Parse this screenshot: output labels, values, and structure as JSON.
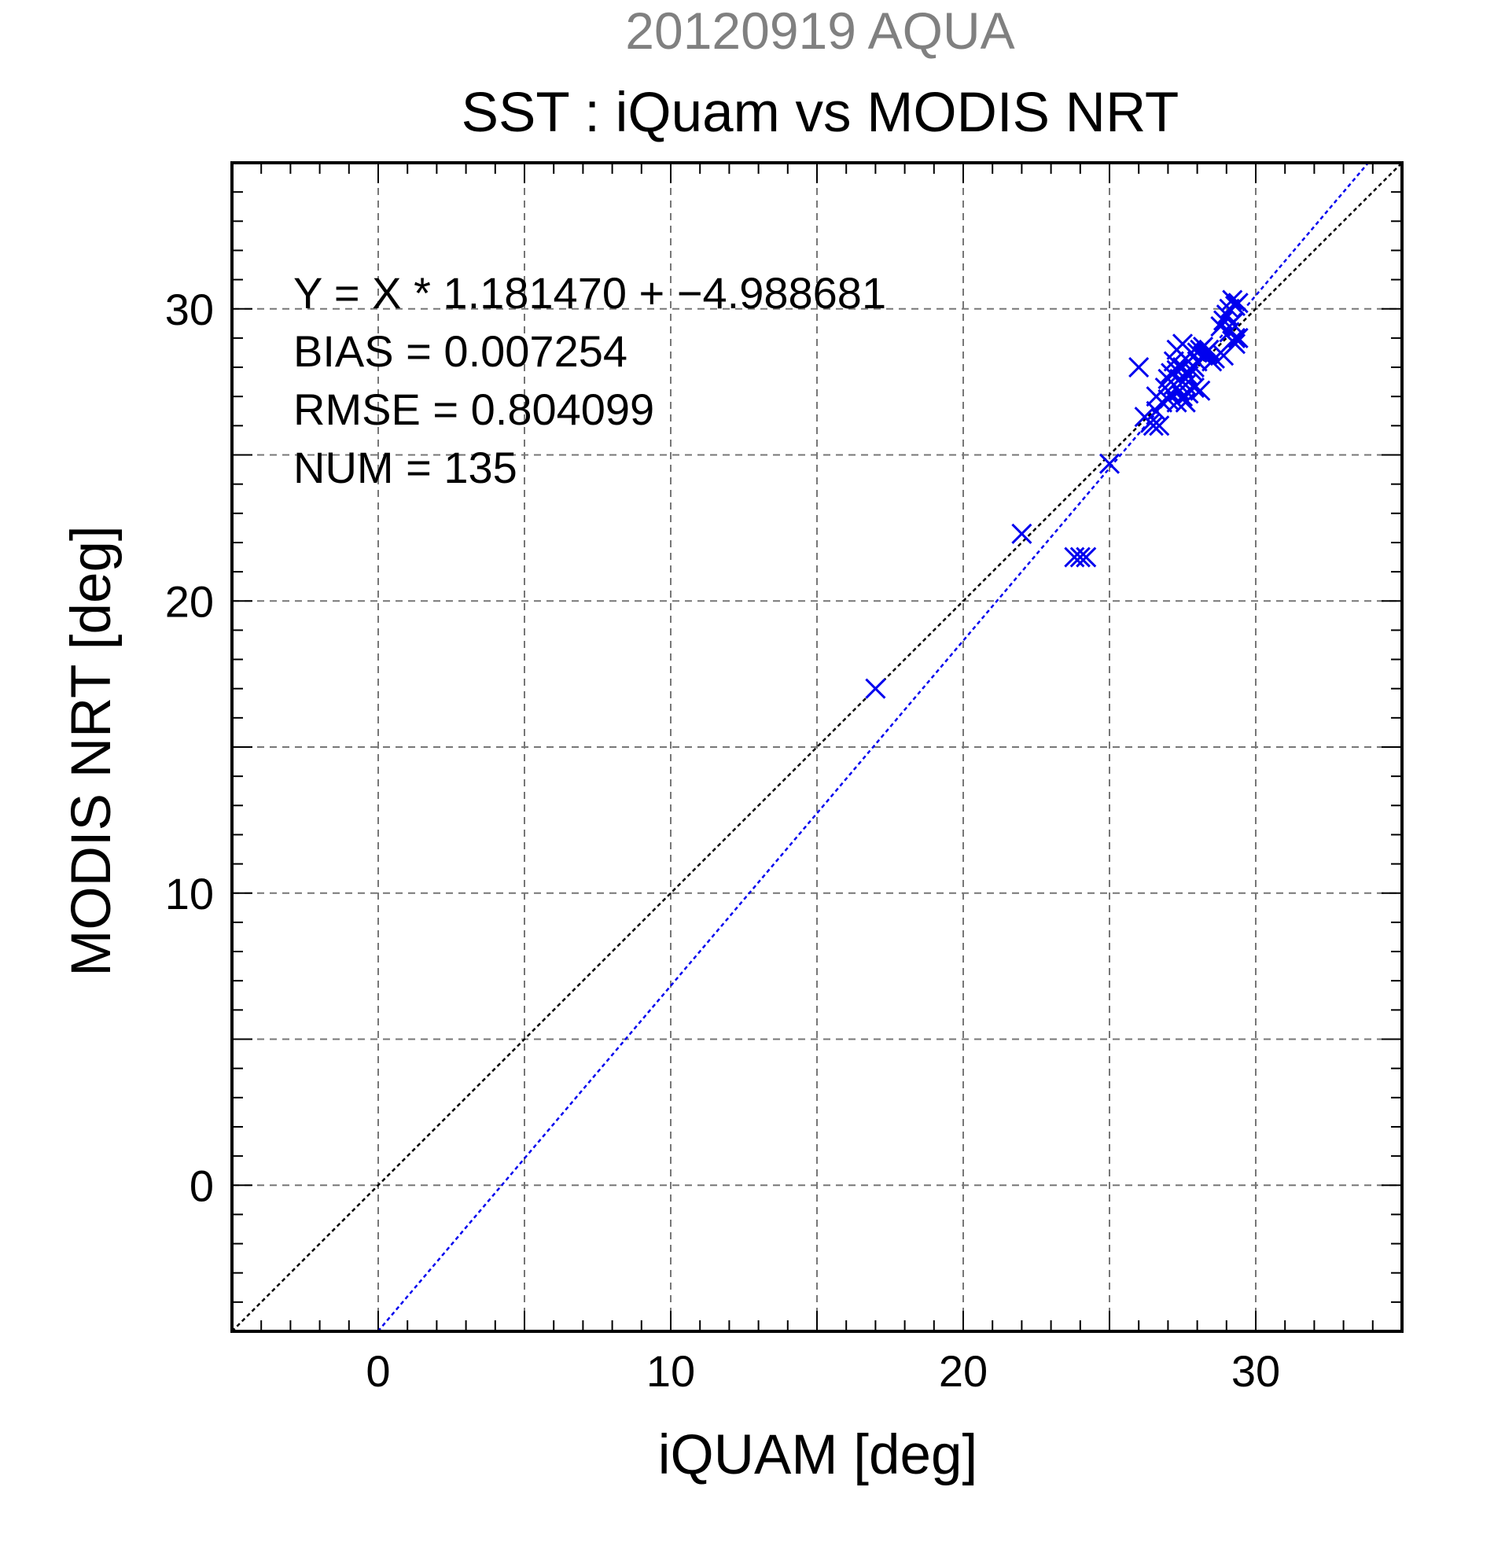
{
  "chart_data": {
    "type": "scatter",
    "title_top": "20120919 AQUA",
    "title": "SST : iQuam vs MODIS NRT",
    "xlabel": "iQUAM [deg]",
    "ylabel": "MODIS NRT [deg]",
    "xlim": [
      -5,
      35
    ],
    "ylim": [
      -5,
      35
    ],
    "x_ticks": [
      0,
      10,
      20,
      30
    ],
    "y_ticks": [
      0,
      10,
      20,
      30
    ],
    "x_tick_labels": [
      "0",
      "10",
      "20",
      "30"
    ],
    "y_tick_labels": [
      "0",
      "10",
      "20",
      "30"
    ],
    "grid": true,
    "stats": [
      "Y = X * 1.181470 + −4.988681",
      "BIAS = 0.007254",
      "RMSE = 0.804099",
      "NUM = 135"
    ],
    "fit": {
      "slope": 1.18147,
      "intercept": -4.988681
    },
    "colors": {
      "points": "#0000ee",
      "fit_line": "#0000ee",
      "identity_line": "#000000",
      "grid": "#777777",
      "top_title": "#808080"
    },
    "points": [
      [
        17.0,
        17.0
      ],
      [
        22.0,
        22.3
      ],
      [
        23.8,
        21.5
      ],
      [
        24.0,
        21.5
      ],
      [
        24.2,
        21.5
      ],
      [
        25.0,
        24.7
      ],
      [
        26.0,
        28.0
      ],
      [
        26.2,
        26.3
      ],
      [
        26.4,
        26.1
      ],
      [
        26.5,
        26.0
      ],
      [
        26.6,
        26.5
      ],
      [
        26.7,
        26.0
      ],
      [
        26.6,
        27.0
      ],
      [
        26.8,
        26.8
      ],
      [
        26.9,
        27.3
      ],
      [
        27.0,
        27.6
      ],
      [
        27.0,
        26.9
      ],
      [
        27.1,
        27.8
      ],
      [
        27.1,
        27.1
      ],
      [
        27.2,
        28.2
      ],
      [
        27.2,
        27.4
      ],
      [
        27.3,
        26.8
      ],
      [
        27.3,
        27.9
      ],
      [
        27.3,
        28.6
      ],
      [
        27.4,
        27.2
      ],
      [
        27.4,
        27.6
      ],
      [
        27.5,
        27.0
      ],
      [
        27.5,
        28.0
      ],
      [
        27.5,
        28.8
      ],
      [
        27.6,
        27.4
      ],
      [
        27.6,
        26.8
      ],
      [
        27.6,
        28.3
      ],
      [
        27.7,
        27.7
      ],
      [
        27.7,
        27.1
      ],
      [
        27.8,
        28.5
      ],
      [
        27.8,
        27.9
      ],
      [
        27.9,
        28.0
      ],
      [
        27.9,
        27.3
      ],
      [
        28.0,
        28.5
      ],
      [
        28.0,
        28.2
      ],
      [
        28.1,
        27.2
      ],
      [
        28.1,
        28.6
      ],
      [
        28.2,
        28.4
      ],
      [
        28.2,
        28.7
      ],
      [
        28.3,
        28.5
      ],
      [
        28.4,
        28.6
      ],
      [
        28.5,
        28.2
      ],
      [
        28.6,
        28.3
      ],
      [
        28.8,
        29.4
      ],
      [
        28.9,
        29.6
      ],
      [
        28.9,
        28.4
      ],
      [
        29.0,
        29.8
      ],
      [
        29.1,
        30.0
      ],
      [
        29.1,
        29.2
      ],
      [
        29.2,
        30.3
      ],
      [
        29.2,
        28.9
      ],
      [
        29.3,
        29.0
      ],
      [
        29.3,
        28.8
      ],
      [
        29.3,
        30.1
      ],
      [
        29.4,
        29.0
      ],
      [
        29.4,
        30.2
      ],
      [
        29.2,
        29.5
      ]
    ]
  }
}
